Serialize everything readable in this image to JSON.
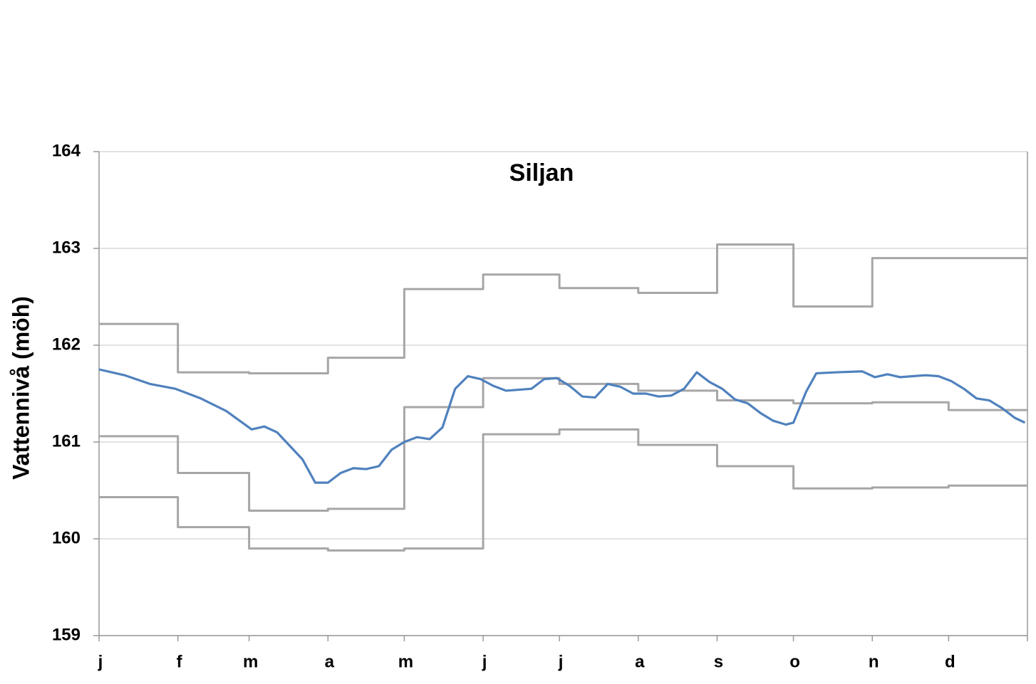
{
  "chart_data": {
    "type": "line",
    "title": "Siljan",
    "y_label": "Vattennivå (möh)",
    "xlim": [
      0,
      365
    ],
    "ylim": [
      159,
      164
    ],
    "yticks": [
      159,
      160,
      161,
      162,
      163,
      164
    ],
    "grid": true,
    "xticks": [
      {
        "value": 0,
        "label": "j"
      },
      {
        "value": 31,
        "label": "f"
      },
      {
        "value": 59,
        "label": "m"
      },
      {
        "value": 90,
        "label": "a"
      },
      {
        "value": 120,
        "label": "m"
      },
      {
        "value": 151,
        "label": "j"
      },
      {
        "value": 181,
        "label": "j"
      },
      {
        "value": 212,
        "label": "a"
      },
      {
        "value": 243,
        "label": "s"
      },
      {
        "value": 273,
        "label": "o"
      },
      {
        "value": 304,
        "label": "n"
      },
      {
        "value": 334,
        "label": "d"
      }
    ],
    "series": [
      {
        "color": "#a6a6a6",
        "step": true,
        "x": [
          0,
          31,
          59,
          90,
          120,
          151,
          181,
          212,
          243,
          273,
          304,
          334
        ],
        "values": [
          162.22,
          161.72,
          161.71,
          161.87,
          162.58,
          162.73,
          162.59,
          162.54,
          163.04,
          162.4,
          162.9,
          162.9
        ]
      },
      {
        "color": "#a6a6a6",
        "step": true,
        "x": [
          0,
          31,
          59,
          90,
          120,
          151,
          181,
          212,
          243,
          273,
          304,
          334
        ],
        "values": [
          161.06,
          160.68,
          160.29,
          160.31,
          161.36,
          161.66,
          161.6,
          161.53,
          161.43,
          161.4,
          161.41,
          161.33
        ]
      },
      {
        "color": "#a6a6a6",
        "step": true,
        "x": [
          0,
          31,
          59,
          90,
          120,
          151,
          181,
          212,
          243,
          273,
          304,
          334
        ],
        "values": [
          160.43,
          160.12,
          159.9,
          159.88,
          159.9,
          161.08,
          161.13,
          160.97,
          160.75,
          160.52,
          160.53,
          160.55
        ]
      },
      {
        "color": "#4f81bd",
        "step": false,
        "x": [
          0,
          10,
          20,
          30,
          40,
          50,
          60,
          65,
          70,
          80,
          85,
          90,
          95,
          100,
          105,
          110,
          115,
          120,
          125,
          130,
          135,
          140,
          145,
          150,
          155,
          160,
          165,
          170,
          175,
          180,
          185,
          190,
          195,
          200,
          205,
          210,
          215,
          220,
          225,
          230,
          235,
          240,
          245,
          250,
          255,
          260,
          265,
          270,
          273,
          278,
          282,
          290,
          300,
          305,
          310,
          315,
          320,
          325,
          330,
          335,
          340,
          345,
          350,
          355,
          360,
          364
        ],
        "values": [
          161.75,
          161.69,
          161.6,
          161.55,
          161.45,
          161.32,
          161.13,
          161.16,
          161.1,
          160.82,
          160.58,
          160.58,
          160.68,
          160.73,
          160.72,
          160.75,
          160.92,
          161.0,
          161.05,
          161.03,
          161.15,
          161.55,
          161.68,
          161.65,
          161.58,
          161.53,
          161.54,
          161.55,
          161.65,
          161.66,
          161.58,
          161.47,
          161.46,
          161.6,
          161.57,
          161.5,
          161.5,
          161.47,
          161.48,
          161.55,
          161.72,
          161.62,
          161.55,
          161.44,
          161.4,
          161.3,
          161.22,
          161.18,
          161.2,
          161.52,
          161.71,
          161.72,
          161.73,
          161.67,
          161.7,
          161.67,
          161.68,
          161.69,
          161.68,
          161.63,
          161.55,
          161.45,
          161.43,
          161.35,
          161.25,
          161.2
        ]
      }
    ]
  }
}
